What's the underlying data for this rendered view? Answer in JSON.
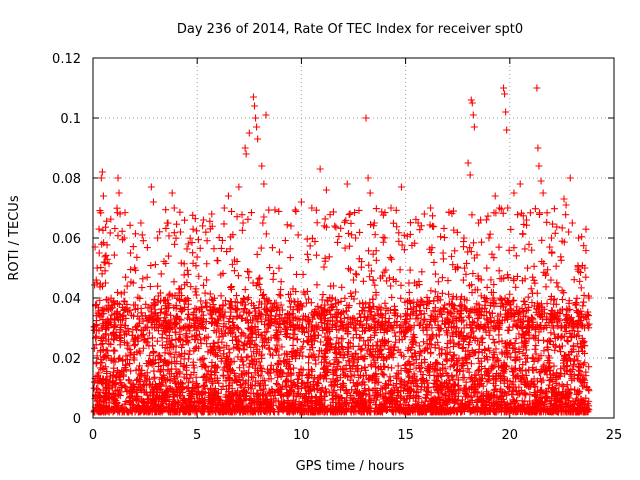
{
  "chart_data": {
    "type": "scatter",
    "title": "Day 236 of 2014, Rate Of TEC Index for receiver spt0",
    "xlabel": "GPS time / hours",
    "ylabel": "ROTI / TECUs",
    "xlim": [
      0,
      25
    ],
    "ylim": [
      0,
      0.12
    ],
    "xticks": [
      0,
      5,
      10,
      15,
      20,
      25
    ],
    "xtick_labels": [
      "0",
      "5",
      "10",
      "15",
      "20",
      "25"
    ],
    "yticks": [
      0,
      0.02,
      0.04,
      0.06,
      0.08,
      0.1,
      0.12
    ],
    "ytick_labels": [
      "0",
      "0.02",
      "0.04",
      "0.06",
      "0.08",
      "0.1",
      "0.12"
    ],
    "grid": true,
    "marker": "+",
    "color": "#ff0000",
    "series": [
      {
        "name": "ROTI",
        "note": "Dense point cloud; representative sampled points including the visible outliers",
        "points": [
          [
            0.1,
            0.057
          ],
          [
            0.2,
            0.05
          ],
          [
            0.4,
            0.08
          ],
          [
            0.45,
            0.082
          ],
          [
            0.5,
            0.074
          ],
          [
            0.3,
            0.055
          ],
          [
            0.6,
            0.045
          ],
          [
            1.2,
            0.08
          ],
          [
            1.25,
            0.075
          ],
          [
            1.3,
            0.068
          ],
          [
            1.5,
            0.06
          ],
          [
            1.8,
            0.055
          ],
          [
            2.0,
            0.05
          ],
          [
            2.3,
            0.065
          ],
          [
            2.8,
            0.077
          ],
          [
            2.9,
            0.072
          ],
          [
            3.1,
            0.06
          ],
          [
            3.6,
            0.065
          ],
          [
            3.8,
            0.075
          ],
          [
            3.9,
            0.07
          ],
          [
            4.2,
            0.062
          ],
          [
            5.3,
            0.066
          ],
          [
            5.7,
            0.068
          ],
          [
            6.3,
            0.07
          ],
          [
            6.5,
            0.074
          ],
          [
            7.0,
            0.077
          ],
          [
            7.2,
            0.065
          ],
          [
            7.3,
            0.09
          ],
          [
            7.35,
            0.088
          ],
          [
            7.5,
            0.095
          ],
          [
            7.7,
            0.107
          ],
          [
            7.75,
            0.104
          ],
          [
            7.8,
            0.1
          ],
          [
            7.85,
            0.097
          ],
          [
            7.9,
            0.093
          ],
          [
            8.1,
            0.084
          ],
          [
            8.2,
            0.078
          ],
          [
            8.3,
            0.101
          ],
          [
            8.2,
            0.067
          ],
          [
            8.15,
            0.065
          ],
          [
            9.5,
            0.064
          ],
          [
            10.0,
            0.072
          ],
          [
            10.5,
            0.07
          ],
          [
            10.9,
            0.083
          ],
          [
            11.2,
            0.076
          ],
          [
            11.6,
            0.064
          ],
          [
            12.2,
            0.078
          ],
          [
            12.6,
            0.06
          ],
          [
            12.5,
            0.046
          ],
          [
            13.1,
            0.1
          ],
          [
            13.2,
            0.08
          ],
          [
            13.3,
            0.075
          ],
          [
            13.5,
            0.065
          ],
          [
            14.0,
            0.06
          ],
          [
            14.3,
            0.07
          ],
          [
            14.8,
            0.077
          ],
          [
            15.6,
            0.065
          ],
          [
            15.9,
            0.068
          ],
          [
            16.2,
            0.07
          ],
          [
            16.8,
            0.055
          ],
          [
            17.5,
            0.05
          ],
          [
            17.8,
            0.06
          ],
          [
            18.0,
            0.085
          ],
          [
            18.1,
            0.081
          ],
          [
            18.15,
            0.106
          ],
          [
            18.2,
            0.105
          ],
          [
            18.25,
            0.101
          ],
          [
            18.3,
            0.097
          ],
          [
            18.5,
            0.065
          ],
          [
            19.0,
            0.06
          ],
          [
            19.3,
            0.074
          ],
          [
            19.5,
            0.07
          ],
          [
            19.7,
            0.11
          ],
          [
            19.75,
            0.108
          ],
          [
            19.8,
            0.102
          ],
          [
            19.85,
            0.096
          ],
          [
            19.9,
            0.07
          ],
          [
            20.2,
            0.075
          ],
          [
            20.5,
            0.078
          ],
          [
            20.8,
            0.066
          ],
          [
            21.3,
            0.11
          ],
          [
            21.35,
            0.09
          ],
          [
            21.4,
            0.084
          ],
          [
            21.5,
            0.079
          ],
          [
            21.6,
            0.075
          ],
          [
            22.0,
            0.06
          ],
          [
            22.6,
            0.073
          ],
          [
            22.7,
            0.071
          ],
          [
            22.9,
            0.08
          ],
          [
            23.0,
            0.065
          ],
          [
            23.3,
            0.06
          ],
          [
            23.6,
            0.05
          ],
          [
            23.8,
            0.04
          ]
        ],
        "baseline_range": [
          0.002,
          0.04
        ]
      }
    ]
  }
}
